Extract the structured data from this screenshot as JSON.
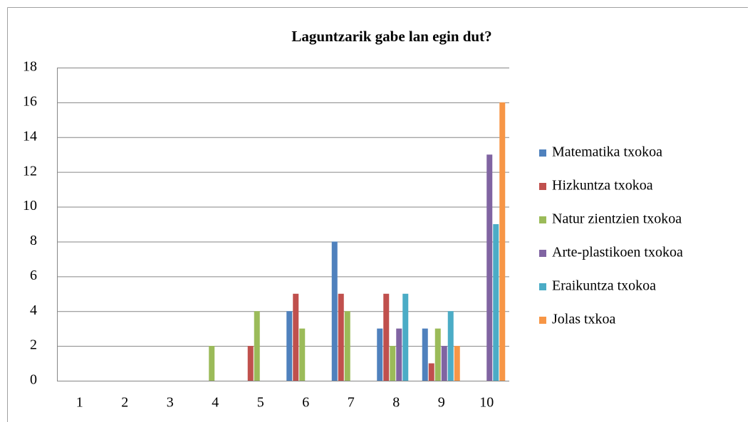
{
  "chart_data": {
    "type": "bar",
    "title": "Laguntzarik gabe lan egin dut?",
    "categories": [
      "1",
      "2",
      "3",
      "4",
      "5",
      "6",
      "7",
      "8",
      "9",
      "10"
    ],
    "series": [
      {
        "name": "Matematika txokoa",
        "color": "#4f81bd",
        "values": [
          0,
          0,
          0,
          0,
          0,
          4,
          8,
          3,
          3,
          0
        ]
      },
      {
        "name": "Hizkuntza txokoa",
        "color": "#c0504d",
        "values": [
          0,
          0,
          0,
          0,
          2,
          5,
          5,
          5,
          1,
          0
        ]
      },
      {
        "name": "Natur zientzien txokoa",
        "color": "#9bbb59",
        "values": [
          0,
          0,
          0,
          2,
          4,
          3,
          4,
          2,
          3,
          0
        ]
      },
      {
        "name": "Arte-plastikoen txokoa",
        "color": "#8064a2",
        "values": [
          0,
          0,
          0,
          0,
          0,
          0,
          0,
          3,
          2,
          13
        ]
      },
      {
        "name": "Eraikuntza txokoa",
        "color": "#4bacc6",
        "values": [
          0,
          0,
          0,
          0,
          0,
          0,
          0,
          5,
          4,
          9
        ]
      },
      {
        "name": "Jolas txkoa",
        "color": "#f79646",
        "values": [
          0,
          0,
          0,
          0,
          0,
          0,
          0,
          0,
          2,
          16
        ]
      }
    ],
    "ylim": [
      0,
      18
    ],
    "yticks": [
      0,
      2,
      4,
      6,
      8,
      10,
      12,
      14,
      16,
      18
    ],
    "grid": true,
    "legend": "right"
  }
}
